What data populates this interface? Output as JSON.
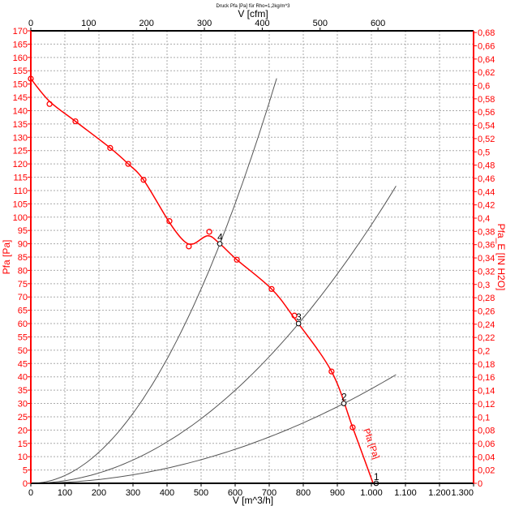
{
  "chart_data": {
    "type": "line",
    "title": "Druck Pfa [Pa] für Rho=1,2kg/m^3",
    "xlabel": "V [m^3/h]",
    "x2label": "V [cfm]",
    "ylabel": "Pfa [Pa]",
    "y2label": "Pfa_E [IN H2O]",
    "xlim": [
      0,
      1300
    ],
    "ylim": [
      0,
      170
    ],
    "x2lim": [
      0,
      765.2
    ],
    "y2lim": [
      0,
      0.6826
    ],
    "grid": true,
    "x_ticks": [
      "0",
      "100",
      "200",
      "300",
      "400",
      "500",
      "600",
      "700",
      "800",
      "900",
      "1.000",
      "1.100",
      "1.200",
      "1.300"
    ],
    "x2_ticks": [
      "0",
      "100",
      "200",
      "300",
      "400",
      "500",
      "600"
    ],
    "y_ticks": [
      "0",
      "5",
      "10",
      "15",
      "20",
      "25",
      "30",
      "35",
      "40",
      "45",
      "50",
      "55",
      "60",
      "65",
      "70",
      "75",
      "80",
      "85",
      "90",
      "95",
      "100",
      "105",
      "110",
      "115",
      "120",
      "125",
      "130",
      "135",
      "140",
      "145",
      "150",
      "155",
      "160",
      "165",
      "170"
    ],
    "y2_ticks": [
      "0",
      "0,02",
      "0,04",
      "0,06",
      "0,08",
      "0,1",
      "0,12",
      "0,14",
      "0,16",
      "0,18",
      "0,2",
      "0,22",
      "0,24",
      "0,26",
      "0,28",
      "0,3",
      "0,32",
      "0,34",
      "0,36",
      "0,38",
      "0,4",
      "0,42",
      "0,44",
      "0,46",
      "0,48",
      "0,5",
      "0,52",
      "0,54",
      "0,56",
      "0,58",
      "0,6",
      "0,62",
      "0,64",
      "0,66",
      "0,68"
    ],
    "fan_curve": {
      "name": "Pfa [Pa]",
      "color": "#ff0000",
      "curve": [
        [
          0,
          152
        ],
        [
          55,
          143.5
        ],
        [
          131,
          136
        ],
        [
          233,
          126
        ],
        [
          286,
          120
        ],
        [
          331,
          114
        ],
        [
          407,
          98
        ],
        [
          450,
          91
        ],
        [
          478,
          90
        ],
        [
          520,
          93
        ],
        [
          555,
          90
        ],
        [
          605,
          84
        ],
        [
          707,
          73
        ],
        [
          774,
          62
        ],
        [
          883,
          42
        ],
        [
          945,
          21
        ],
        [
          1005,
          0
        ]
      ],
      "measured": [
        [
          0,
          152
        ],
        [
          55,
          142.5
        ],
        [
          131,
          136
        ],
        [
          233,
          126
        ],
        [
          286,
          120
        ],
        [
          331,
          114
        ],
        [
          407,
          98.5
        ],
        [
          464,
          89
        ],
        [
          524,
          94.5
        ],
        [
          605,
          84
        ],
        [
          707,
          73
        ],
        [
          774,
          63
        ],
        [
          883,
          42
        ],
        [
          945,
          21
        ]
      ]
    },
    "system_curves": {
      "color": "#555555",
      "coefficients": [
        0.000292,
        9.71e-05,
        3.55e-05
      ],
      "x_max": [
        731,
        1086,
        1086
      ]
    },
    "operating_points": [
      {
        "label": "1",
        "x": 1014,
        "y": 0
      },
      {
        "label": "2",
        "x": 919,
        "y": 30
      },
      {
        "label": "3",
        "x": 786,
        "y": 60
      },
      {
        "label": "4",
        "x": 555,
        "y": 90
      }
    ]
  }
}
